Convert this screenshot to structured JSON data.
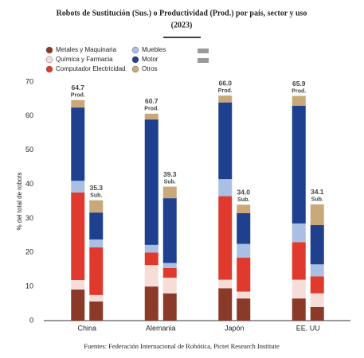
{
  "chart_data": {
    "type": "stacked-bar",
    "title": "Robots de Sustitución (Sus.) o Productividad (Prod.) por país, sector y uso",
    "subtitle": "(2023)",
    "ylabel": "% del total de robots",
    "source": "Fuentes: Federación Internacional de Robótica, Pictet Research Institute",
    "categories": [
      "China",
      "Alemania",
      "Japón",
      "EE. UU"
    ],
    "stack_names": [
      "Prod.",
      "Sub."
    ],
    "series": [
      {
        "name": "Metales y Maquinaria",
        "color": "#8b3a2a",
        "values": [
          [
            9.1,
            5.6
          ],
          [
            10.0,
            8.0
          ],
          [
            9.5,
            6.5
          ],
          [
            6.5,
            4.0
          ]
        ]
      },
      {
        "name": "Química y Farmacia",
        "color": "#f6ddd8",
        "values": [
          [
            2.8,
            1.9
          ],
          [
            6.3,
            4.6
          ],
          [
            2.5,
            2.0
          ],
          [
            5.5,
            4.0
          ]
        ]
      },
      {
        "name": "Computador  Electricidad",
        "color": "#e03a2e",
        "values": [
          [
            25.7,
            14.0
          ],
          [
            3.7,
            2.8
          ],
          [
            24.5,
            10.0
          ],
          [
            11.0,
            5.0
          ]
        ]
      },
      {
        "name": "Muebles",
        "color": "#a9bfe3",
        "values": [
          [
            3.4,
            2.3
          ],
          [
            2.2,
            1.5
          ],
          [
            5.0,
            4.0
          ],
          [
            5.5,
            3.5
          ]
        ]
      },
      {
        "name": "Motor",
        "color": "#1f3f8f",
        "values": [
          [
            21.5,
            7.9
          ],
          [
            36.8,
            19.0
          ],
          [
            22.5,
            9.0
          ],
          [
            34.5,
            11.5
          ]
        ]
      },
      {
        "name": "Otros",
        "color": "#c9a97a",
        "values": [
          [
            2.2,
            3.6
          ],
          [
            1.7,
            3.4
          ],
          [
            2.0,
            2.5
          ],
          [
            2.9,
            6.1
          ]
        ]
      }
    ],
    "totals": {
      "values": [
        [
          64.7,
          35.3
        ],
        [
          60.7,
          39.3
        ],
        [
          66.0,
          34.0
        ],
        [
          65.9,
          34.1
        ]
      ],
      "value_labels": [
        [
          "64.7",
          "35.3"
        ],
        [
          "60.7",
          "39.3"
        ],
        [
          "66.0",
          "34.0"
        ],
        [
          "65.9",
          "34.1"
        ]
      ]
    },
    "ylim": [
      0,
      70
    ],
    "yticks": [
      0,
      10,
      20,
      30,
      40,
      50,
      60,
      70
    ]
  }
}
